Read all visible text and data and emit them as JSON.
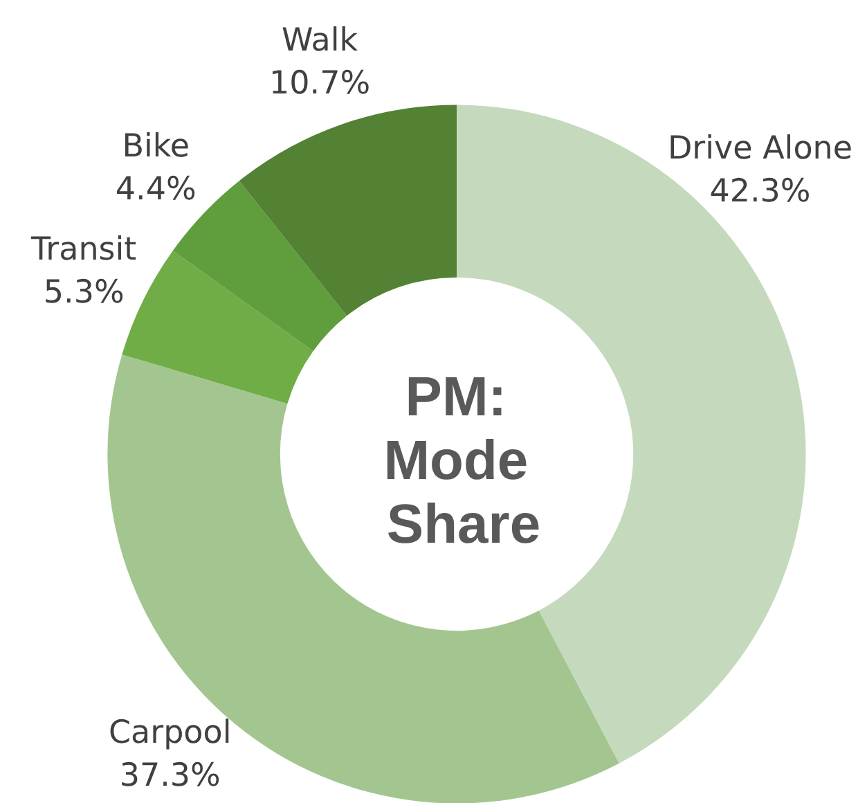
{
  "chart_data": {
    "type": "donut",
    "title": "PM: Mode Share",
    "categories": [
      "Drive Alone",
      "Carpool",
      "Transit",
      "Bike",
      "Walk"
    ],
    "values": [
      42.3,
      37.3,
      5.3,
      4.4,
      10.7
    ],
    "value_labels": [
      "42.3%",
      "37.3%",
      "5.3%",
      "4.4%",
      "10.7%"
    ],
    "colors": [
      "#c5dabd",
      "#a3c690",
      "#70ad47",
      "#5f9d3d",
      "#548235"
    ],
    "legend": false
  }
}
